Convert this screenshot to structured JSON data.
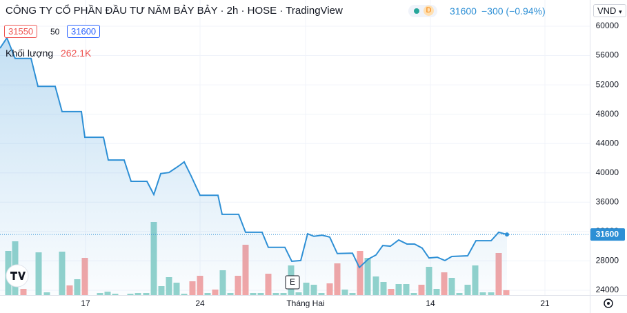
{
  "header": {
    "title": "CÔNG TY CỔ PHẦN ĐẦU TƯ NĂM BẢY BẢY · 2h · HOSE · TradingView",
    "status": "D",
    "last": "31600",
    "change": "−300 (−0.94%)",
    "currency": "VND",
    "bid": "31550",
    "spread": "50",
    "ask": "31600",
    "volume_title": "Khối lượng",
    "volume_last": "262.1K",
    "event_marker": "E"
  },
  "chart_data": {
    "type": "line",
    "xlim": [
      0,
      85.5
    ],
    "xticks": [
      {
        "value": 12.4,
        "label": "17"
      },
      {
        "value": 29.0,
        "label": "24"
      },
      {
        "value": 44.3,
        "label": "Tháng Hai"
      },
      {
        "value": 62.4,
        "label": "14"
      },
      {
        "value": 79.0,
        "label": "21"
      }
    ],
    "ylim": [
      23340,
      63570
    ],
    "yticks": [
      24000,
      28000,
      32000,
      36000,
      40000,
      44000,
      48000,
      52000,
      56000,
      60000
    ],
    "y2lim": [
      0,
      15836000
    ],
    "grid": true,
    "last_price_label": "31600",
    "series": [
      {
        "color": "#2d8fd5",
        "x": [
          0,
          1,
          2.2,
          4.5,
          5.5,
          8,
          9,
          11.8,
          12.3,
          15,
          15.7,
          18,
          19,
          21.3,
          22.3,
          23.3,
          24.5,
          26,
          26.7,
          27.7,
          29,
          31.6,
          32.2,
          34.6,
          35.6,
          38,
          38.9,
          41.3,
          42.3,
          43.6,
          44.6,
          45.5,
          46.7,
          47.8,
          48.9,
          51.1,
          52.1,
          53.4,
          54.5,
          55.5,
          56.6,
          57.8,
          59,
          60.1,
          61.2,
          62.2,
          63.4,
          64.5,
          65.5,
          67.8,
          69,
          71.2,
          72.3,
          73.5
        ],
        "values": [
          57000,
          58400,
          55600,
          55600,
          51800,
          51800,
          48350,
          48350,
          44850,
          44850,
          41750,
          41750,
          38850,
          38850,
          37050,
          39900,
          40050,
          41000,
          41500,
          39600,
          36950,
          36950,
          34350,
          34350,
          31900,
          31900,
          29850,
          29850,
          27950,
          28050,
          31700,
          31350,
          31500,
          31250,
          29000,
          29050,
          27100,
          28250,
          28800,
          30100,
          30000,
          30850,
          30300,
          30300,
          29750,
          28400,
          28500,
          28050,
          28600,
          28700,
          30750,
          30750,
          31900,
          31600
        ]
      },
      {
        "name": "Khối lượng",
        "type": "bar",
        "axis": "y2",
        "x": [
          1.2,
          2.2,
          3.4,
          5.6,
          6.8,
          9,
          10.1,
          11.2,
          12.3,
          14.5,
          15.6,
          16.7,
          18.9,
          20,
          21.2,
          22.3,
          23.4,
          24.5,
          25.6,
          26.7,
          27.9,
          29,
          30.1,
          31.2,
          32.3,
          33.4,
          34.5,
          35.6,
          36.7,
          37.8,
          38.9,
          40,
          41.1,
          42.2,
          43.3,
          44.4,
          45.5,
          46.6,
          47.8,
          48.9,
          50,
          51.1,
          52.2,
          53.3,
          54.5,
          55.6,
          56.7,
          57.8,
          58.9,
          60,
          61.1,
          62.2,
          63.3,
          64.4,
          65.5,
          66.6,
          67.8,
          68.9,
          70,
          71.2,
          72.3,
          73.4
        ],
        "values": [
          2368000,
          2886000,
          333000,
          2294000,
          148000,
          2331000,
          518000,
          851000,
          1998000,
          111000,
          185000,
          74000,
          74000,
          111000,
          111000,
          3922000,
          481000,
          962000,
          666000,
          74000,
          740000,
          1036000,
          111000,
          296000,
          1332000,
          111000,
          1036000,
          2701000,
          111000,
          111000,
          1147000,
          111000,
          111000,
          1591000,
          148000,
          666000,
          555000,
          111000,
          629000,
          1702000,
          296000,
          111000,
          2368000,
          1998000,
          999000,
          703000,
          333000,
          592000,
          592000,
          111000,
          555000,
          1517000,
          333000,
          1221000,
          925000,
          111000,
          555000,
          1591000,
          148000,
          148000,
          2257000,
          262100
        ],
        "colors": [
          "#93d3cc",
          "#93d3cc",
          "#f4a6a6",
          "#93d3cc",
          "#93d3cc",
          "#93d3cc",
          "#f4a6a6",
          "#93d3cc",
          "#f4a6a6",
          "#93d3cc",
          "#93d3cc",
          "#93d3cc",
          "#93d3cc",
          "#93d3cc",
          "#93d3cc",
          "#93d3cc",
          "#93d3cc",
          "#93d3cc",
          "#93d3cc",
          "#93d3cc",
          "#f4a6a6",
          "#f4a6a6",
          "#93d3cc",
          "#f4a6a6",
          "#93d3cc",
          "#93d3cc",
          "#f4a6a6",
          "#f4a6a6",
          "#93d3cc",
          "#93d3cc",
          "#f4a6a6",
          "#93d3cc",
          "#93d3cc",
          "#93d3cc",
          "#93d3cc",
          "#93d3cc",
          "#93d3cc",
          "#93d3cc",
          "#f4a6a6",
          "#f4a6a6",
          "#93d3cc",
          "#93d3cc",
          "#f4a6a6",
          "#93d3cc",
          "#93d3cc",
          "#93d3cc",
          "#f4a6a6",
          "#93d3cc",
          "#93d3cc",
          "#93d3cc",
          "#f4a6a6",
          "#93d3cc",
          "#93d3cc",
          "#f4a6a6",
          "#93d3cc",
          "#93d3cc",
          "#93d3cc",
          "#93d3cc",
          "#93d3cc",
          "#93d3cc",
          "#f4a6a6",
          "#f4a6a6"
        ]
      }
    ]
  }
}
